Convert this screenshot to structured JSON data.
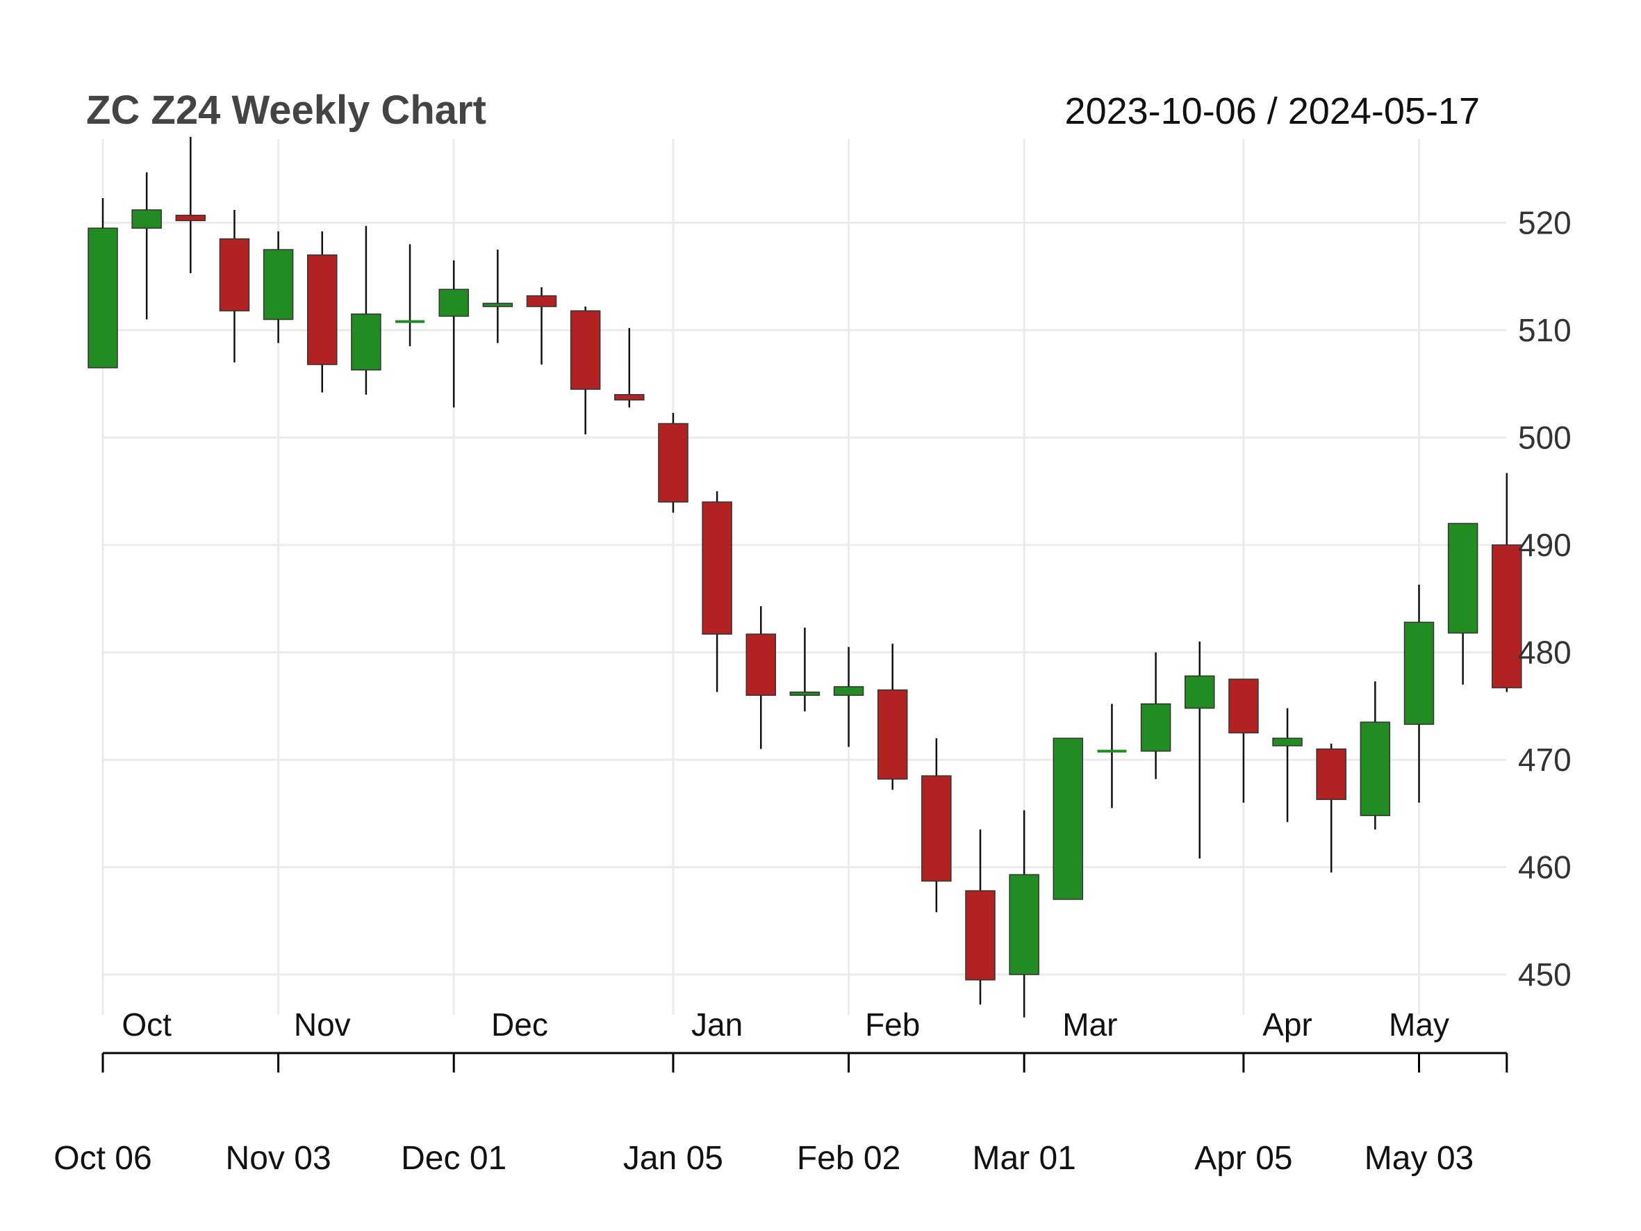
{
  "chart_data": {
    "type": "candlestick",
    "title": "ZC Z24 Weekly Chart",
    "date_range": "2023-10-06 / 2024-05-17",
    "ylim": [
      446,
      528
    ],
    "yticks": [
      "450",
      "460",
      "470",
      "480",
      "490",
      "500",
      "510",
      "520"
    ],
    "grid": true,
    "colors": {
      "up": "#228B22",
      "down": "#B22222",
      "grid": "#EBEBEB",
      "axis": "#000000"
    },
    "month_labels": [
      {
        "label": "Oct",
        "pos": 1.0
      },
      {
        "label": "Nov",
        "pos": 5.0
      },
      {
        "label": "Dec",
        "pos": 9.5
      },
      {
        "label": "Jan",
        "pos": 14.0
      },
      {
        "label": "Feb",
        "pos": 18.0
      },
      {
        "label": "Mar",
        "pos": 22.5
      },
      {
        "label": "Apr",
        "pos": 27.0
      },
      {
        "label": "May",
        "pos": 30.0
      }
    ],
    "x_ticks": [
      {
        "label": "Oct 06",
        "index": 0
      },
      {
        "label": "Nov 03",
        "index": 4
      },
      {
        "label": "Dec 01",
        "index": 8
      },
      {
        "label": "Jan 05",
        "index": 13
      },
      {
        "label": "Feb 02",
        "index": 17
      },
      {
        "label": "Mar 01",
        "index": 21
      },
      {
        "label": "Apr 05",
        "index": 26
      },
      {
        "label": "May 03",
        "index": 30
      }
    ],
    "candles": [
      {
        "date": "2023-10-06",
        "open": 506.5,
        "high": 522.3,
        "low": 506.5,
        "close": 519.5
      },
      {
        "date": "2023-10-13",
        "open": 519.5,
        "high": 524.7,
        "low": 511.0,
        "close": 521.2
      },
      {
        "date": "2023-10-20",
        "open": 520.7,
        "high": 528.0,
        "low": 515.3,
        "close": 520.2
      },
      {
        "date": "2023-10-27",
        "open": 518.5,
        "high": 521.2,
        "low": 507.0,
        "close": 511.8
      },
      {
        "date": "2023-11-03",
        "open": 511.0,
        "high": 519.2,
        "low": 508.8,
        "close": 517.5
      },
      {
        "date": "2023-11-10",
        "open": 517.0,
        "high": 519.2,
        "low": 504.2,
        "close": 506.8
      },
      {
        "date": "2023-11-17",
        "open": 506.3,
        "high": 519.7,
        "low": 504.0,
        "close": 511.5
      },
      {
        "date": "2023-11-24",
        "open": 510.8,
        "high": 518.0,
        "low": 508.5,
        "close": 510.8
      },
      {
        "date": "2023-12-01",
        "open": 511.3,
        "high": 516.5,
        "low": 502.8,
        "close": 513.8
      },
      {
        "date": "2023-12-08",
        "open": 512.2,
        "high": 517.5,
        "low": 508.8,
        "close": 512.5
      },
      {
        "date": "2023-12-15",
        "open": 513.2,
        "high": 514.0,
        "low": 506.8,
        "close": 512.2
      },
      {
        "date": "2023-12-22",
        "open": 511.8,
        "high": 512.2,
        "low": 500.3,
        "close": 504.5
      },
      {
        "date": "2023-12-29",
        "open": 504.0,
        "high": 510.2,
        "low": 502.8,
        "close": 503.5
      },
      {
        "date": "2024-01-05",
        "open": 501.3,
        "high": 502.3,
        "low": 493.0,
        "close": 494.0
      },
      {
        "date": "2024-01-12",
        "open": 494.0,
        "high": 495.0,
        "low": 476.3,
        "close": 481.7
      },
      {
        "date": "2024-01-19",
        "open": 481.7,
        "high": 484.3,
        "low": 471.0,
        "close": 476.0
      },
      {
        "date": "2024-01-26",
        "open": 476.0,
        "high": 482.3,
        "low": 474.5,
        "close": 476.3
      },
      {
        "date": "2024-02-02",
        "open": 476.0,
        "high": 480.5,
        "low": 471.2,
        "close": 476.8
      },
      {
        "date": "2024-02-09",
        "open": 476.5,
        "high": 480.8,
        "low": 467.2,
        "close": 468.2
      },
      {
        "date": "2024-02-16",
        "open": 468.5,
        "high": 472.0,
        "low": 455.8,
        "close": 458.7
      },
      {
        "date": "2024-02-23",
        "open": 457.8,
        "high": 463.5,
        "low": 447.2,
        "close": 449.5
      },
      {
        "date": "2024-03-01",
        "open": 450.0,
        "high": 465.3,
        "low": 446.0,
        "close": 459.3
      },
      {
        "date": "2024-03-08",
        "open": 457.0,
        "high": 472.0,
        "low": 457.0,
        "close": 472.0
      },
      {
        "date": "2024-03-15",
        "open": 470.8,
        "high": 475.2,
        "low": 465.5,
        "close": 470.8
      },
      {
        "date": "2024-03-22",
        "open": 470.8,
        "high": 480.0,
        "low": 468.2,
        "close": 475.2
      },
      {
        "date": "2024-03-29",
        "open": 474.8,
        "high": 481.0,
        "low": 460.8,
        "close": 477.8
      },
      {
        "date": "2024-04-05",
        "open": 477.5,
        "high": 477.5,
        "low": 466.0,
        "close": 472.5
      },
      {
        "date": "2024-04-12",
        "open": 471.3,
        "high": 474.8,
        "low": 464.2,
        "close": 472.0
      },
      {
        "date": "2024-04-19",
        "open": 471.0,
        "high": 471.5,
        "low": 459.5,
        "close": 466.3
      },
      {
        "date": "2024-04-26",
        "open": 464.8,
        "high": 477.3,
        "low": 463.5,
        "close": 473.5
      },
      {
        "date": "2024-05-03",
        "open": 473.3,
        "high": 486.3,
        "low": 466.0,
        "close": 482.8
      },
      {
        "date": "2024-05-10",
        "open": 481.8,
        "high": 492.0,
        "low": 477.0,
        "close": 492.0
      },
      {
        "date": "2024-05-17",
        "open": 490.0,
        "high": 496.7,
        "low": 476.3,
        "close": 476.7
      }
    ]
  }
}
